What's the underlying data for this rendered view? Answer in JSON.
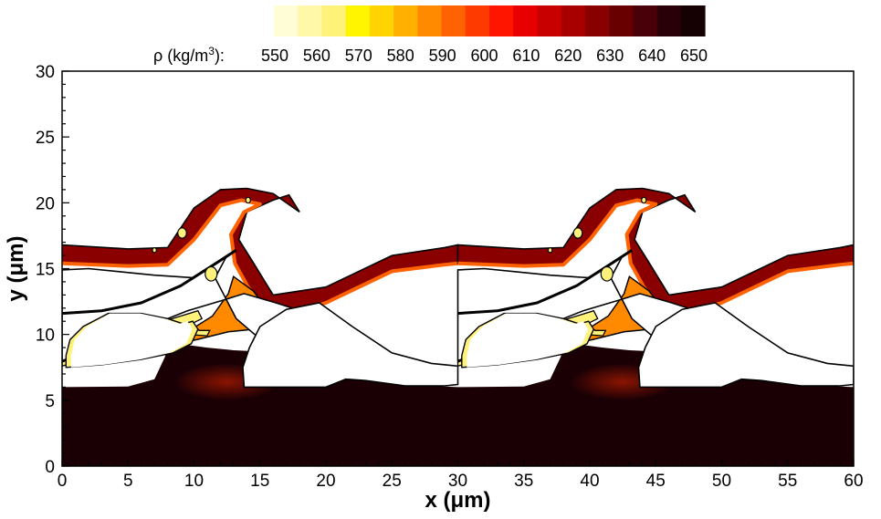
{
  "chart_data": {
    "type": "heatmap",
    "title": "",
    "xlabel": "x (μm)",
    "ylabel": "y (μm)",
    "xlim": [
      0,
      60
    ],
    "ylim": [
      0,
      30
    ],
    "x_ticks": [
      0,
      5,
      10,
      15,
      20,
      25,
      30,
      35,
      40,
      45,
      50,
      55,
      60
    ],
    "y_ticks": [
      0,
      5,
      10,
      15,
      20,
      25,
      30
    ],
    "grid": false,
    "colorbar": {
      "label": "ρ (kg/m",
      "label_sup": "3",
      "label_end": "):",
      "placement": "top",
      "levels": [
        550,
        560,
        570,
        580,
        590,
        600,
        610,
        620,
        630,
        640,
        650
      ],
      "colors": [
        "#fffdd6",
        "#fff8a8",
        "#fff27a",
        "#fff500",
        "#ffd400",
        "#ffb000",
        "#ff8a00",
        "#ff6200",
        "#ff3a00",
        "#ff1500",
        "#e80000",
        "#c80000",
        "#a80000",
        "#880000",
        "#680000",
        "#4a0008",
        "#2a0008",
        "#150004"
      ]
    },
    "background_color": "#1a0005",
    "wave_period": 30,
    "profiles": {
      "wall_top": [
        [
          0,
          6
        ],
        [
          5,
          6.05
        ],
        [
          7,
          6.6
        ],
        [
          7.8,
          8.3
        ],
        [
          8.3,
          10
        ],
        [
          8.8,
          9.6
        ],
        [
          9.5,
          9.2
        ],
        [
          11,
          9
        ],
        [
          13,
          8.8
        ],
        [
          15,
          8.7
        ],
        [
          17,
          8.4
        ],
        [
          20,
          7.5
        ],
        [
          25,
          6.4
        ],
        [
          29,
          6.05
        ],
        [
          30,
          6
        ]
      ],
      "band_outer": [
        [
          0,
          16.8
        ],
        [
          5,
          16.5
        ],
        [
          8,
          16.6
        ],
        [
          10,
          19.6
        ],
        [
          12,
          21
        ],
        [
          14,
          21.1
        ],
        [
          16,
          20.7
        ],
        [
          18,
          19.3
        ],
        [
          17.2,
          20.6
        ],
        [
          16,
          20.2
        ],
        [
          14,
          19.3
        ],
        [
          13.4,
          17.2
        ],
        [
          14.4,
          15.6
        ],
        [
          16,
          13
        ],
        [
          20,
          13.6
        ],
        [
          25,
          16
        ],
        [
          29,
          16.6
        ],
        [
          30,
          16.8
        ]
      ],
      "band_inner": [
        [
          0,
          15.4
        ],
        [
          5,
          15.2
        ],
        [
          8,
          15.3
        ],
        [
          10,
          17.2
        ],
        [
          12,
          19.8
        ],
        [
          13.6,
          20.2
        ],
        [
          15,
          19.9
        ],
        [
          13.8,
          19.3
        ],
        [
          12.8,
          17.6
        ],
        [
          13.1,
          15.4
        ],
        [
          14.1,
          13.6
        ],
        [
          15.4,
          12
        ],
        [
          17,
          11.5
        ],
        [
          20,
          12.4
        ],
        [
          25,
          14.8
        ],
        [
          29,
          15.3
        ],
        [
          30,
          15.4
        ]
      ],
      "lobe_left": [
        [
          8.1,
          8.9
        ],
        [
          9.5,
          10.2
        ],
        [
          11.4,
          11.4
        ],
        [
          12.6,
          13.1
        ],
        [
          13,
          14.4
        ],
        [
          14.5,
          13.3
        ],
        [
          15.4,
          12.1
        ],
        [
          16.6,
          10.8
        ],
        [
          14.6,
          10.4
        ],
        [
          12.6,
          10.2
        ],
        [
          10.2,
          9.6
        ],
        [
          8.7,
          9.3
        ]
      ],
      "tongue": [
        [
          0,
          7.9
        ],
        [
          3,
          9.1
        ],
        [
          6,
          10.5
        ],
        [
          9,
          11.4
        ],
        [
          10.3,
          11.8
        ],
        [
          10.6,
          11.2
        ],
        [
          9.8,
          10.8
        ],
        [
          10.4,
          10.3
        ],
        [
          11.2,
          10.3
        ],
        [
          11,
          9.9
        ],
        [
          9.5,
          10
        ],
        [
          6.6,
          9.4
        ],
        [
          3,
          8.4
        ],
        [
          0,
          7.6
        ]
      ],
      "filament_top": [
        [
          0,
          11.6
        ],
        [
          3,
          11.8
        ],
        [
          6,
          12.4
        ],
        [
          9,
          13.7
        ],
        [
          11.5,
          15.3
        ],
        [
          13.2,
          16.4
        ]
      ],
      "cavity_left": [
        [
          30.3,
          7.5
        ],
        [
          33,
          7.7
        ],
        [
          36,
          8.1
        ],
        [
          38.4,
          8.6
        ],
        [
          39.8,
          9.3
        ],
        [
          40.3,
          10.4
        ],
        [
          39.9,
          11
        ],
        [
          39.2,
          10.8
        ],
        [
          38,
          11.2
        ],
        [
          36,
          11.6
        ],
        [
          33.5,
          11.6
        ],
        [
          31.6,
          10.6
        ],
        [
          30.6,
          9.6
        ],
        [
          30.3,
          8.4
        ]
      ],
      "cavity_right": [
        [
          13.8,
          6
        ],
        [
          17,
          6
        ],
        [
          20,
          6
        ],
        [
          21.5,
          6.6
        ],
        [
          23,
          6.5
        ],
        [
          26,
          6.1
        ],
        [
          29,
          6.1
        ],
        [
          30,
          6.2
        ],
        [
          30,
          7.6
        ],
        [
          28,
          7.8
        ],
        [
          25,
          8.6
        ],
        [
          22,
          10.6
        ],
        [
          19.5,
          12.4
        ],
        [
          17,
          11.9
        ],
        [
          15,
          10.6
        ],
        [
          14.2,
          9
        ],
        [
          13.7,
          7.5
        ]
      ],
      "cavity_top": [
        [
          2,
          15
        ],
        [
          5,
          14.7
        ],
        [
          7,
          14.5
        ],
        [
          10,
          14.3
        ],
        [
          12.5,
          16
        ],
        [
          11.6,
          14.3
        ],
        [
          13.2,
          11.2
        ],
        [
          14.6,
          10
        ],
        [
          16,
          9.3
        ],
        [
          17.5,
          9.2
        ],
        [
          19,
          9.7
        ],
        [
          19.5,
          9.9
        ],
        [
          19,
          11.5
        ],
        [
          16.2,
          12.4
        ],
        [
          13.8,
          13.1
        ],
        [
          12.2,
          12.6
        ],
        [
          9.5,
          11.8
        ],
        [
          6.5,
          10.6
        ],
        [
          3,
          9.2
        ],
        [
          0,
          8
        ],
        [
          0,
          14.9
        ]
      ],
      "droplets": [
        [
          7,
          16.4,
          0.15
        ],
        [
          9.1,
          17.7,
          0.33
        ],
        [
          11.3,
          14.6,
          0.45
        ],
        [
          14.1,
          20.2,
          0.18
        ]
      ]
    }
  }
}
